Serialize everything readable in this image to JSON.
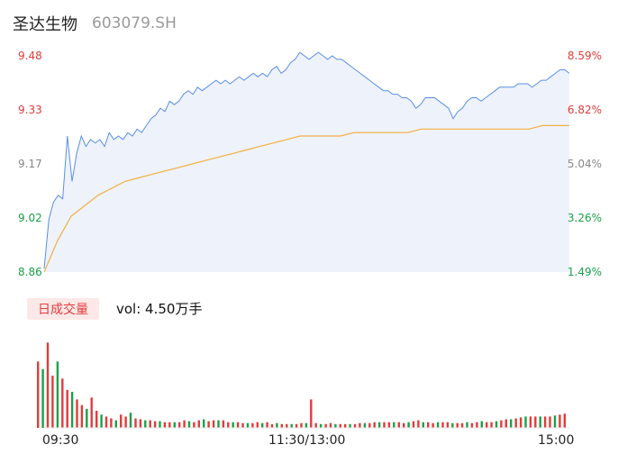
{
  "header": {
    "name": "圣达生物",
    "code": "603079.SH"
  },
  "y_axis_left": {
    "labels": [
      "9.48",
      "9.33",
      "9.17",
      "9.02",
      "8.86"
    ],
    "colors": [
      "#e23b3b",
      "#e23b3b",
      "#888888",
      "#1aa14a",
      "#1aa14a"
    ]
  },
  "y_axis_right": {
    "labels": [
      "8.59%",
      "6.82%",
      "5.04%",
      "3.26%",
      "1.49%"
    ],
    "colors": [
      "#e23b3b",
      "#e23b3b",
      "#888888",
      "#1aa14a",
      "#1aa14a"
    ]
  },
  "volume": {
    "badge": "日成交量",
    "label": "vol: 4.50万手"
  },
  "time_axis": {
    "labels": [
      "09:30",
      "11:30/13:00",
      "15:00"
    ]
  },
  "colors": {
    "price_line": "#5b8fe6",
    "avg_line": "#f0b040",
    "up": "#e23b3b",
    "down": "#1aa14a",
    "area": "#eef2fb"
  },
  "chart_data": {
    "type": "line",
    "series": [
      {
        "values": [
          8.87,
          9.01,
          9.06,
          9.08,
          9.07,
          9.25,
          9.12,
          9.2,
          9.25,
          9.22,
          9.24,
          9.23,
          9.24,
          9.22,
          9.26,
          9.24,
          9.25,
          9.24,
          9.26,
          9.25,
          9.27,
          9.26,
          9.28,
          9.3,
          9.31,
          9.33,
          9.32,
          9.35,
          9.34,
          9.35,
          9.37,
          9.38,
          9.37,
          9.39,
          9.38,
          9.39,
          9.4,
          9.41,
          9.4,
          9.41,
          9.4,
          9.41,
          9.42,
          9.41,
          9.42,
          9.43,
          9.42,
          9.43,
          9.42,
          9.44,
          9.45,
          9.43,
          9.44,
          9.46,
          9.47,
          9.49,
          9.48,
          9.47,
          9.48,
          9.49,
          9.48,
          9.47,
          9.48,
          9.47,
          9.47,
          9.46,
          9.45,
          9.44,
          9.43,
          9.42,
          9.41,
          9.4,
          9.39,
          9.38,
          9.38,
          9.37,
          9.37,
          9.36,
          9.36,
          9.35,
          9.33,
          9.34,
          9.36,
          9.36,
          9.36,
          9.35,
          9.34,
          9.33,
          9.3,
          9.32,
          9.33,
          9.35,
          9.36,
          9.36,
          9.35,
          9.36,
          9.37,
          9.38,
          9.39,
          9.39,
          9.39,
          9.39,
          9.4,
          9.4,
          9.4,
          9.39,
          9.4,
          9.41,
          9.41,
          9.42,
          9.43,
          9.44,
          9.44,
          9.43
        ]
      },
      {
        "values": [
          8.86,
          8.95,
          9.02,
          9.05,
          9.08,
          9.1,
          9.12,
          9.13,
          9.14,
          9.15,
          9.16,
          9.17,
          9.18,
          9.19,
          9.2,
          9.21,
          9.22,
          9.23,
          9.24,
          9.25,
          9.25,
          9.25,
          9.25,
          9.26,
          9.26,
          9.26,
          9.26,
          9.26,
          9.27,
          9.27,
          9.27,
          9.27,
          9.27,
          9.27,
          9.27,
          9.27,
          9.27,
          9.28,
          9.28,
          9.28
        ]
      }
    ],
    "ylim": [
      8.86,
      9.48
    ],
    "volume_values": [
      70,
      62,
      90,
      55,
      70,
      52,
      40,
      38,
      30,
      24,
      20,
      32,
      18,
      14,
      12,
      10,
      8,
      14,
      12,
      16,
      10,
      9,
      8,
      8,
      7,
      7,
      6,
      6,
      6,
      6,
      8,
      7,
      6,
      8,
      9,
      7,
      8,
      8,
      8,
      6,
      6,
      6,
      5,
      5,
      5,
      6,
      5,
      6,
      4,
      5,
      4,
      4,
      4,
      4,
      5,
      5,
      30,
      5,
      4,
      4,
      5,
      4,
      4,
      4,
      4,
      4,
      5,
      5,
      5,
      6,
      6,
      6,
      6,
      6,
      6,
      5,
      6,
      7,
      8,
      6,
      6,
      5,
      6,
      6,
      6,
      5,
      5,
      5,
      6,
      5,
      6,
      7,
      6,
      6,
      7,
      8,
      9,
      9,
      10,
      11,
      12,
      12,
      12,
      12,
      12,
      12,
      13,
      14,
      15
    ]
  }
}
